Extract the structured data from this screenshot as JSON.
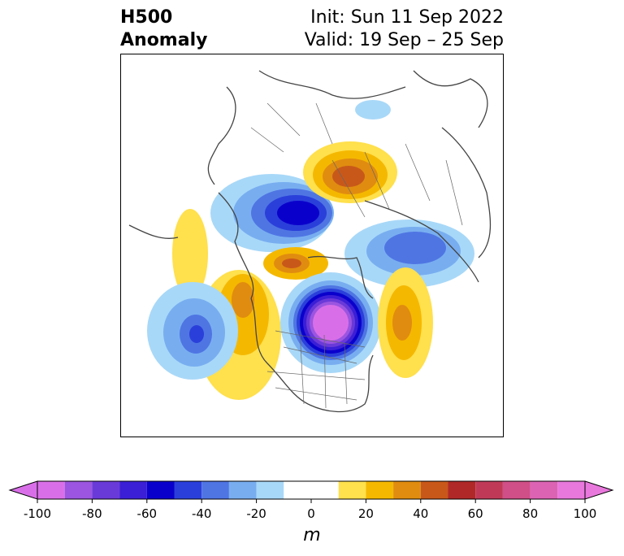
{
  "title": {
    "left_line1": "H500",
    "left_line2": "Anomaly",
    "right_line1": "Init: Sun 11 Sep 2022",
    "right_line2": "Valid: 19 Sep – 25 Sep"
  },
  "colorbar": {
    "unit": "m",
    "tick_labels": [
      "-100",
      "-80",
      "-60",
      "-40",
      "-20",
      "0",
      "20",
      "40",
      "60",
      "80",
      "100"
    ],
    "ticks": [
      -100,
      -80,
      -60,
      -40,
      -20,
      0,
      20,
      40,
      60,
      80,
      100
    ],
    "range": [
      -100,
      100
    ],
    "bins": [
      {
        "from": -100,
        "to": -90,
        "color": "#d96fe8"
      },
      {
        "from": -90,
        "to": -80,
        "color": "#9b55e0"
      },
      {
        "from": -80,
        "to": -70,
        "color": "#6a3ad8"
      },
      {
        "from": -70,
        "to": -60,
        "color": "#3b1fd6"
      },
      {
        "from": -60,
        "to": -50,
        "color": "#0a00cc"
      },
      {
        "from": -50,
        "to": -40,
        "color": "#2a3fda"
      },
      {
        "from": -40,
        "to": -30,
        "color": "#4f75e3"
      },
      {
        "from": -30,
        "to": -20,
        "color": "#78aef0"
      },
      {
        "from": -20,
        "to": -10,
        "color": "#a8d8f8"
      },
      {
        "from": -10,
        "to": 10,
        "color": "#ffffff"
      },
      {
        "from": 10,
        "to": 20,
        "color": "#ffe04d"
      },
      {
        "from": 20,
        "to": 30,
        "color": "#f5b800"
      },
      {
        "from": 30,
        "to": 40,
        "color": "#e08c10"
      },
      {
        "from": 40,
        "to": 50,
        "color": "#c8581a"
      },
      {
        "from": 50,
        "to": 60,
        "color": "#b02828"
      },
      {
        "from": 60,
        "to": 70,
        "color": "#c03a58"
      },
      {
        "from": 70,
        "to": 80,
        "color": "#d04f88"
      },
      {
        "from": 80,
        "to": 90,
        "color": "#dc63b4"
      },
      {
        "from": 90,
        "to": 100,
        "color": "#e878dc"
      }
    ],
    "under_color": "#d96fe8",
    "over_color": "#e878dc"
  }
}
